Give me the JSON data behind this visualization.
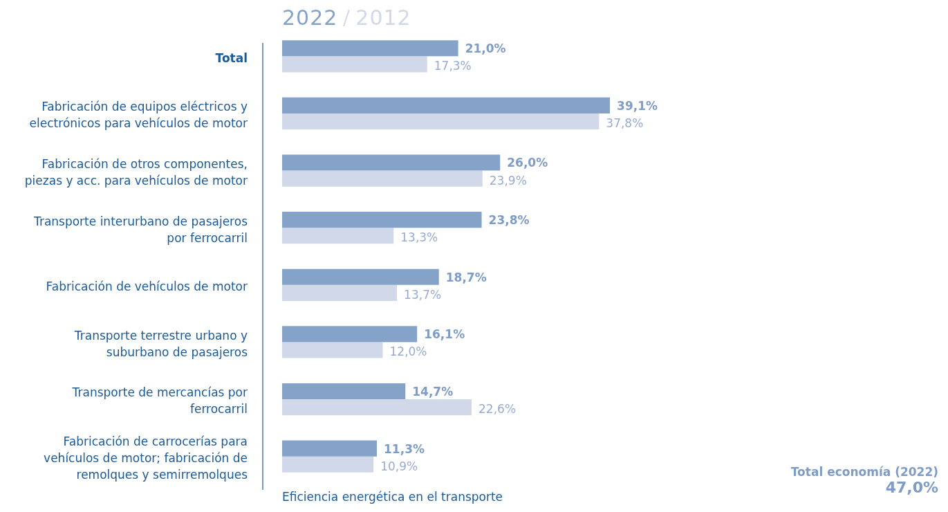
{
  "chart_data": {
    "type": "bar",
    "orientation": "horizontal",
    "legend": "top",
    "categories": [
      "Total",
      "Fabricación de equipos eléctricos y electrónicos para vehículos de motor",
      "Fabricación de otros componentes, piezas y acc. para vehículos de motor",
      "Transporte interurbano de pasajeros por ferrocarril",
      "Fabricación de vehículos de motor",
      "Transporte terrestre urbano y suburbano de pasajeros",
      "Transporte de mercancías por ferrocarril",
      "Fabricación de carrocerías para vehículos de motor; fabricación de remolques y semirremolques"
    ],
    "series": [
      {
        "name": "2022",
        "color": "#85a3c9",
        "values": [
          21.0,
          39.1,
          26.0,
          23.8,
          18.7,
          16.1,
          14.7,
          11.3
        ],
        "value_labels": [
          "21,0%",
          "39,1%",
          "26,0%",
          "23,8%",
          "18,7%",
          "16,1%",
          "14,7%",
          "11,3%"
        ]
      },
      {
        "name": "2012",
        "color": "#d0d8ea",
        "values": [
          17.3,
          37.8,
          23.9,
          13.3,
          13.7,
          12.0,
          22.6,
          10.9
        ],
        "value_labels": [
          "17,3%",
          "37,8%",
          "23,9%",
          "13,3%",
          "13,7%",
          "12,0%",
          "22,6%",
          "10,9%"
        ]
      }
    ],
    "annotations": [
      "Eficiencia energética en el transporte",
      "Total economía (2022)",
      "47,0%"
    ]
  }
}
